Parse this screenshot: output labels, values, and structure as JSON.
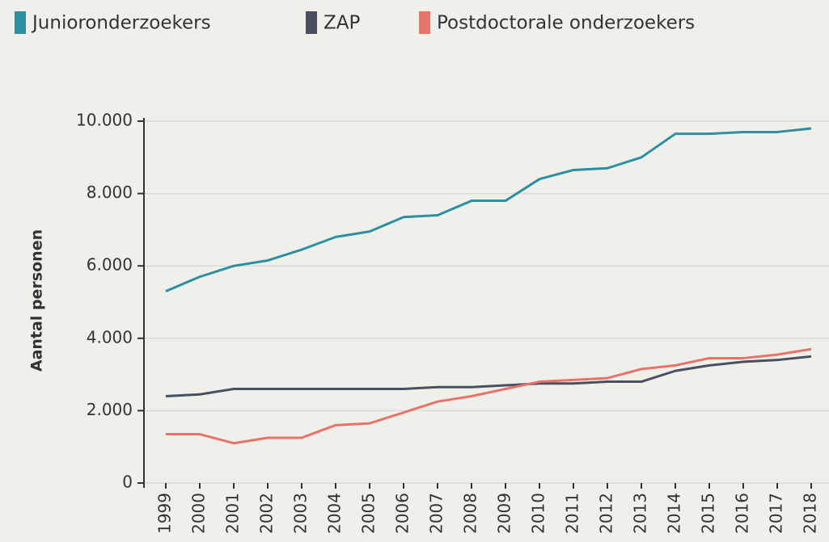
{
  "chart_data": {
    "type": "line",
    "y_label": "Aantal personen",
    "categories": [
      "1999",
      "2000",
      "2001",
      "2002",
      "2003",
      "2004",
      "2005",
      "2006",
      "2007",
      "2008",
      "2009",
      "2010",
      "2011",
      "2012",
      "2013",
      "2014",
      "2015",
      "2016",
      "2017",
      "2018"
    ],
    "series": [
      {
        "name": "Junioronderzoekers",
        "color": "#2e8fa0",
        "values": [
          5300,
          5700,
          6000,
          6150,
          6450,
          6800,
          6950,
          7350,
          7400,
          7800,
          7800,
          8400,
          8650,
          8700,
          9000,
          9650,
          9650,
          9700,
          9700,
          9800
        ]
      },
      {
        "name": "ZAP",
        "color": "#4a5060",
        "values": [
          2400,
          2450,
          2600,
          2600,
          2600,
          2600,
          2600,
          2600,
          2650,
          2650,
          2700,
          2750,
          2750,
          2800,
          2800,
          3100,
          3250,
          3350,
          3400,
          3500
        ]
      },
      {
        "name": "Postdoctorale onderzoekers",
        "color": "#e8736a",
        "values": [
          1350,
          1350,
          1100,
          1250,
          1250,
          1600,
          1650,
          1950,
          2250,
          2400,
          2600,
          2800,
          2850,
          2900,
          3150,
          3250,
          3450,
          3450,
          3550,
          3700
        ]
      }
    ],
    "ylim": [
      0,
      10000
    ],
    "yticks": [
      0,
      {
        "value": 2000,
        "label": "2.000"
      },
      {
        "value": 4000,
        "label": "4.000"
      },
      {
        "value": 6000,
        "label": "6.000"
      },
      {
        "value": 8000,
        "label": "8.000"
      },
      {
        "value": 10000,
        "label": "10.000"
      }
    ],
    "grid": true
  }
}
